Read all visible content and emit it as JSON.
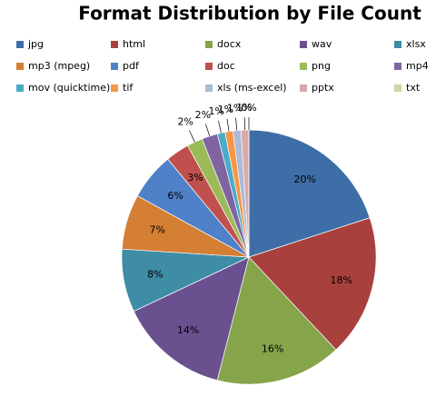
{
  "chart_data": {
    "type": "pie",
    "title": "Format Distribution by File Count",
    "categories": [
      "jpg",
      "html",
      "docx",
      "wav",
      "xlsx",
      "mp3 (mpeg)",
      "pdf",
      "doc",
      "png",
      "mp4",
      "mov (quicktime)",
      "tif",
      "xls (ms-excel)",
      "pptx",
      "txt"
    ],
    "values": [
      20,
      18,
      16,
      14,
      8,
      7,
      6,
      3,
      2,
      2,
      1,
      1,
      1,
      1,
      0
    ],
    "value_labels": [
      "20%",
      "18%",
      "16%",
      "14%",
      "8%",
      "7%",
      "6%",
      "3%",
      "2%",
      "2%",
      "1%",
      "1%",
      "1%",
      "1%",
      "0%"
    ],
    "colors": [
      "#3e6ea8",
      "#a8413e",
      "#86a44a",
      "#6b5090",
      "#3e8ca5",
      "#d47f34",
      "#4f81c8",
      "#c0504d",
      "#9bbb59",
      "#8064a2",
      "#4bacc6",
      "#f79646",
      "#aabad7",
      "#d9a9a8",
      "#c6d9a6"
    ],
    "legend": "top"
  }
}
